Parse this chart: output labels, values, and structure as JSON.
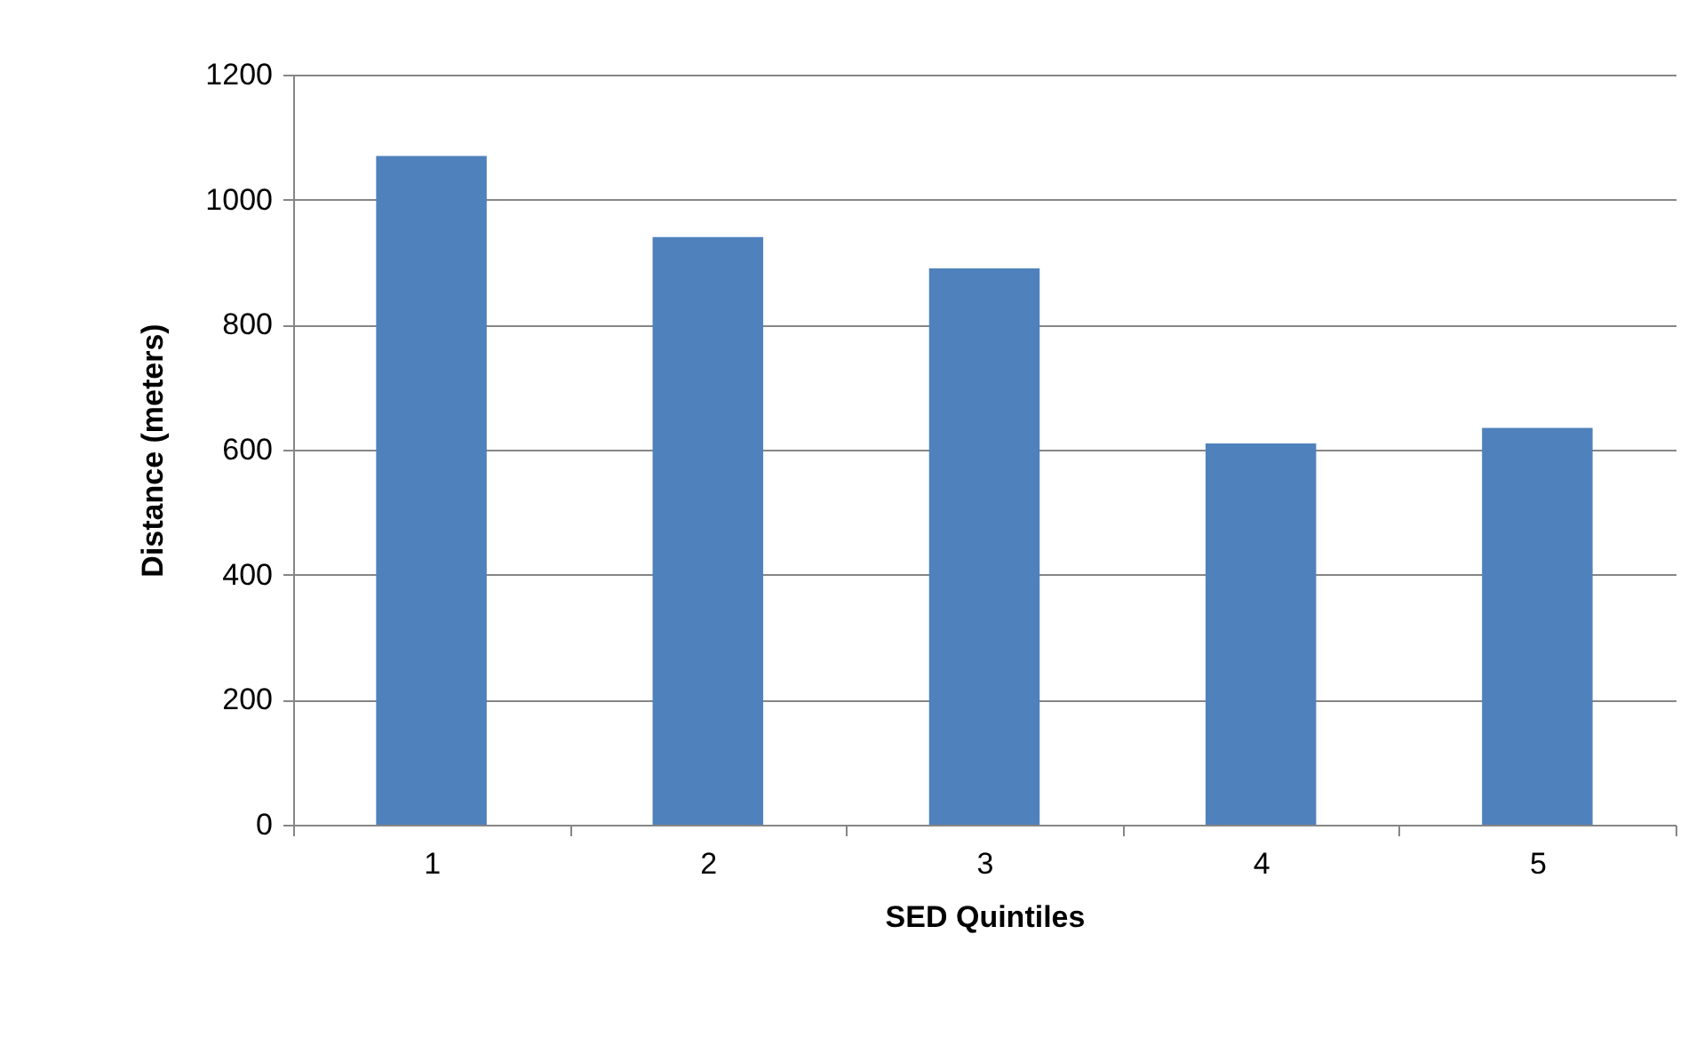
{
  "chart_data": {
    "type": "bar",
    "xlabel": "SED Quintiles",
    "ylabel": "Distance (meters)",
    "categories": [
      "1",
      "2",
      "3",
      "4",
      "5"
    ],
    "values": [
      1070,
      940,
      890,
      610,
      635
    ],
    "color": "#4f81bd",
    "ylim": [
      0,
      1200
    ],
    "yticks": [
      0,
      200,
      400,
      600,
      800,
      1000,
      1200
    ],
    "grid": "y"
  }
}
